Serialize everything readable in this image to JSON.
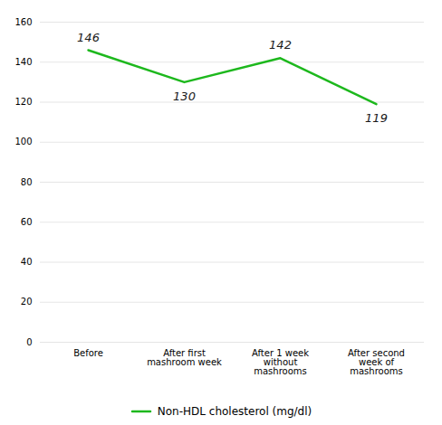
{
  "chart_data": {
    "type": "line",
    "categories": [
      "Before",
      "After first\nmashroom week",
      "After 1 week\nwithout\nmashrooms",
      "After second\nweek of\nmashrooms"
    ],
    "series": [
      {
        "name": "Non-HDL cholesterol (mg/dl)",
        "color": "#1db81d",
        "values": [
          146,
          130,
          142,
          119
        ]
      }
    ],
    "ylim": [
      0,
      160
    ],
    "yticks": [
      0,
      20,
      40,
      60,
      80,
      100,
      120,
      140,
      160
    ],
    "grid": true,
    "legend": "bottom",
    "data_labels": true
  }
}
